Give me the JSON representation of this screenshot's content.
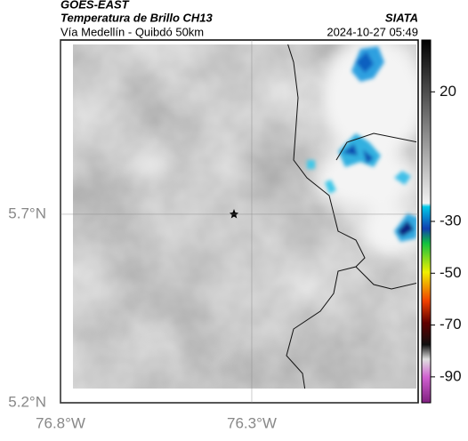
{
  "header": {
    "title": "GOES-EAST",
    "subtitle": "Temperatura de Brillo CH13",
    "route": "Vía Medellín - Quibdó 50km",
    "source": "SIATA",
    "timestamp": "2024-10-27 05:49"
  },
  "map": {
    "xlim": [
      -76.8,
      -75.865
    ],
    "ylim": [
      5.2,
      6.162
    ],
    "xticks": [
      {
        "value": -76.8,
        "label": "76.8°W"
      },
      {
        "value": -76.3,
        "label": "76.3°W"
      }
    ],
    "yticks": [
      {
        "value": 5.7,
        "label": "5.7°N"
      },
      {
        "value": 5.2,
        "label": "5.2°N"
      }
    ],
    "colorbar": {
      "lim": [
        -100,
        40
      ],
      "ticks": [
        20,
        -30,
        -50,
        -70,
        -90
      ]
    }
  }
}
